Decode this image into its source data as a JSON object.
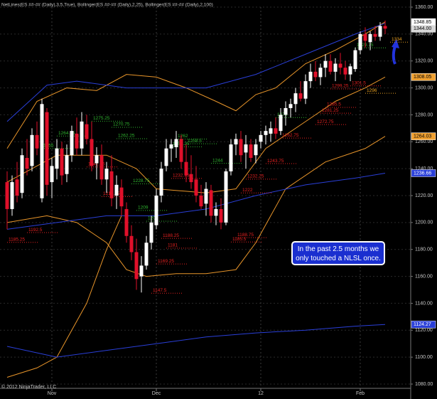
{
  "chart_data": {
    "type": "candlestick",
    "title": "NetLines(ES ##-## (Daily),3,5,True), Bollinger(ES ##-## (Daily),2,25), Bollinger(ES ##-## (Daily),2,100)",
    "copyright": "© 2012 NinjaTrader, LLC",
    "annotation": "In the past 2.5 months we only touched a NLSL once.",
    "categories": [
      null,
      null,
      null,
      null,
      null,
      null,
      null,
      null,
      null,
      "Nov",
      null,
      null,
      null,
      null,
      null,
      null,
      null,
      null,
      null,
      null,
      null,
      null,
      null,
      null,
      null,
      null,
      null,
      null,
      null,
      null,
      "Dec",
      null,
      null,
      null,
      null,
      null,
      null,
      null,
      null,
      null,
      null,
      null,
      null,
      null,
      null,
      null,
      null,
      null,
      null,
      null,
      null,
      "12",
      null,
      null,
      null,
      null,
      null,
      null,
      null,
      null,
      null,
      null,
      null,
      null,
      null,
      null,
      null,
      null,
      null,
      null,
      null,
      "Feb",
      null,
      null,
      null,
      null,
      null
    ],
    "open": [
      1230,
      1210,
      1232,
      1222,
      1248,
      1242,
      1265,
      1218,
      1282,
      1230,
      1240,
      1255,
      1236,
      1250,
      1266,
      1255,
      1273,
      1262,
      1244,
      1250,
      1232,
      1238,
      1220,
      1226,
      1210,
      1190,
      1178,
      1160,
      1168,
      1185,
      1198,
      1220,
      1242,
      1255,
      1256,
      1262,
      1245,
      1236,
      1232,
      1220,
      1214,
      1224,
      1205,
      1210,
      1200,
      1238,
      1258,
      1262,
      1252,
      1258,
      1250,
      1260,
      1265,
      1266,
      1270,
      1268,
      1280,
      1285,
      1288,
      1296,
      1292,
      1305,
      1312,
      1308,
      1315,
      1320,
      1312,
      1318,
      1315,
      1310,
      1314,
      1328,
      1340,
      1334,
      1340,
      1338,
      1346
    ],
    "high": [
      1238,
      1235,
      1245,
      1255,
      1262,
      1270,
      1275,
      1292,
      1285,
      1248,
      1262,
      1260,
      1258,
      1272,
      1278,
      1282,
      1280,
      1275,
      1256,
      1258,
      1245,
      1250,
      1235,
      1232,
      1215,
      1198,
      1188,
      1175,
      1190,
      1205,
      1225,
      1245,
      1262,
      1262,
      1268,
      1265,
      1258,
      1250,
      1242,
      1228,
      1230,
      1228,
      1215,
      1218,
      1240,
      1262,
      1266,
      1268,
      1265,
      1262,
      1262,
      1268,
      1272,
      1275,
      1278,
      1285,
      1290,
      1292,
      1300,
      1305,
      1310,
      1318,
      1320,
      1318,
      1325,
      1325,
      1322,
      1326,
      1320,
      1318,
      1330,
      1342,
      1345,
      1342,
      1346,
      1348.85,
      1350
    ],
    "low": [
      1195,
      1205,
      1215,
      1218,
      1235,
      1238,
      1250,
      1215,
      1220,
      1218,
      1232,
      1228,
      1230,
      1245,
      1250,
      1250,
      1258,
      1238,
      1232,
      1228,
      1222,
      1212,
      1210,
      1205,
      1185,
      1172,
      1150,
      1148,
      1165,
      1180,
      1195,
      1215,
      1238,
      1245,
      1248,
      1240,
      1230,
      1225,
      1215,
      1210,
      1205,
      1200,
      1198,
      1195,
      1198,
      1235,
      1250,
      1245,
      1240,
      1245,
      1244,
      1255,
      1258,
      1260,
      1262,
      1265,
      1272,
      1278,
      1282,
      1290,
      1288,
      1300,
      1305,
      1302,
      1308,
      1310,
      1305,
      1310,
      1306,
      1305,
      1312,
      1325,
      1330,
      1328,
      1335,
      1335,
      1340
    ],
    "close": [
      1210,
      1230,
      1220,
      1250,
      1240,
      1265,
      1255,
      1288,
      1228,
      1242,
      1255,
      1235,
      1250,
      1268,
      1255,
      1275,
      1262,
      1242,
      1250,
      1232,
      1240,
      1218,
      1228,
      1212,
      1190,
      1178,
      1158,
      1168,
      1185,
      1200,
      1220,
      1240,
      1255,
      1258,
      1262,
      1245,
      1235,
      1230,
      1220,
      1212,
      1225,
      1205,
      1210,
      1200,
      1238,
      1258,
      1262,
      1250,
      1258,
      1248,
      1258,
      1265,
      1268,
      1270,
      1266,
      1280,
      1285,
      1288,
      1296,
      1292,
      1305,
      1312,
      1308,
      1315,
      1320,
      1312,
      1318,
      1315,
      1310,
      1316,
      1328,
      1340,
      1335,
      1340,
      1338,
      1346,
      1344
    ],
    "up_color": "#ffffff",
    "down_color": "#e0102a",
    "ylim": [
      1080,
      1360
    ],
    "yticks": [
      {
        "value": 1080,
        "label": "1080.00"
      },
      {
        "value": 1100,
        "label": "1100.00"
      },
      {
        "value": 1120,
        "label": "1120.00"
      },
      {
        "value": 1140,
        "label": "1140.00"
      },
      {
        "value": 1160,
        "label": "1160.00"
      },
      {
        "value": 1180,
        "label": "1180.00"
      },
      {
        "value": 1200,
        "label": "1200.00"
      },
      {
        "value": 1220,
        "label": "1220.00"
      },
      {
        "value": 1240,
        "label": "1240.00"
      },
      {
        "value": 1260,
        "label": "1260.00"
      },
      {
        "value": 1280,
        "label": "1280.00"
      },
      {
        "value": 1300,
        "label": "1300.00"
      },
      {
        "value": 1320,
        "label": "1320.00"
      },
      {
        "value": 1340,
        "label": "1340.00"
      },
      {
        "value": 1360,
        "label": "1360.00"
      }
    ],
    "grid": true,
    "lines": [
      {
        "color": "#e8952a",
        "x": [
          0,
          6,
          12,
          18,
          24,
          30,
          36,
          42,
          46,
          50,
          54,
          60,
          66,
          72,
          76
        ],
        "values": [
          1255,
          1290,
          1300,
          1298,
          1310,
          1308,
          1300,
          1290,
          1283,
          1295,
          1300,
          1318,
          1328,
          1340,
          1349
        ]
      },
      {
        "color": "#e8952a",
        "x": [
          0,
          10,
          20,
          26,
          30,
          40,
          46,
          52,
          60,
          66,
          72,
          76
        ],
        "values": [
          1230,
          1250,
          1250,
          1240,
          1225,
          1222,
          1225,
          1255,
          1275,
          1290,
          1300,
          1308.05
        ]
      },
      {
        "color": "#e8952a",
        "x": [
          0,
          8,
          14,
          20,
          24,
          28,
          34,
          40,
          46,
          50,
          56,
          64,
          72,
          76
        ],
        "values": [
          1200,
          1205,
          1200,
          1185,
          1165,
          1160,
          1162,
          1162,
          1165,
          1185,
          1225,
          1245,
          1255,
          1264.03
        ]
      },
      {
        "color": "#e8952a",
        "x": [
          0,
          6,
          10,
          16,
          20,
          23
        ],
        "values": [
          1085,
          1092,
          1100,
          1140,
          1180,
          1205
        ]
      },
      {
        "color": "#2a3fd8",
        "x": [
          0,
          8,
          14,
          24,
          30,
          40,
          50,
          60,
          70,
          76
        ],
        "values": [
          1275,
          1302,
          1305,
          1300,
          1300,
          1300,
          1310,
          1325,
          1340,
          1348
        ]
      },
      {
        "color": "#2a3fd8",
        "x": [
          0,
          10,
          20,
          30,
          40,
          50,
          60,
          70,
          76
        ],
        "values": [
          1195,
          1200,
          1205,
          1205,
          1210,
          1220,
          1228,
          1233,
          1236.66
        ]
      },
      {
        "color": "#2a3fd8",
        "x": [
          0,
          10,
          20,
          30,
          40,
          50,
          60,
          70,
          76
        ],
        "values": [
          1108,
          1100,
          1105,
          1110,
          1115,
          1118,
          1120,
          1123,
          1124.27
        ]
      }
    ],
    "levels": [
      {
        "value": 1264.25,
        "start": 10,
        "color": "#2fb52f"
      },
      {
        "value": 1275.25,
        "start": 17,
        "color": "#2fb52f"
      },
      {
        "value": 1270.75,
        "start": 21,
        "color": "#2fb52f"
      },
      {
        "value": 1262.25,
        "start": 22,
        "color": "#2fb52f"
      },
      {
        "value": 1255,
        "start": 7,
        "color": "#2fb52f"
      },
      {
        "value": 1228.75,
        "start": 25,
        "color": "#2fb52f"
      },
      {
        "value": 1209,
        "start": 26,
        "color": "#2fb52f"
      },
      {
        "value": 1201,
        "start": 28,
        "color": "#2fb52f"
      },
      {
        "value": 1262,
        "start": 34,
        "color": "#2fb52f"
      },
      {
        "value": 1258.5,
        "start": 36,
        "color": "#2fb52f"
      },
      {
        "value": 1256.25,
        "start": 33,
        "color": "#2fb52f"
      },
      {
        "value": 1244,
        "start": 41,
        "color": "#2fb52f"
      },
      {
        "value": 1278,
        "start": 54,
        "color": "#2fb52f"
      },
      {
        "value": 1329.75,
        "start": 70,
        "color": "#2fb52f"
      },
      {
        "value": 1192.5,
        "start": 4,
        "color": "#e52020"
      },
      {
        "value": 1185.25,
        "start": 0,
        "color": "#e52020"
      },
      {
        "value": 1241.25,
        "start": 16,
        "color": "#e52020"
      },
      {
        "value": 1219.25,
        "start": 19,
        "color": "#e52020"
      },
      {
        "value": 1232.75,
        "start": 33,
        "color": "#e52020"
      },
      {
        "value": 1188.25,
        "start": 31,
        "color": "#e52020"
      },
      {
        "value": 1181,
        "start": 32,
        "color": "#e52020"
      },
      {
        "value": 1169.25,
        "start": 30,
        "color": "#e52020"
      },
      {
        "value": 1147.5,
        "start": 29,
        "color": "#e52020"
      },
      {
        "value": 1243.75,
        "start": 52,
        "color": "#e52020"
      },
      {
        "value": 1232.25,
        "start": 48,
        "color": "#e52020"
      },
      {
        "value": 1222,
        "start": 47,
        "color": "#e52020"
      },
      {
        "value": 1188.75,
        "start": 46,
        "color": "#e52020"
      },
      {
        "value": 1185.5,
        "start": 45,
        "color": "#e52020"
      },
      {
        "value": 1262.75,
        "start": 55,
        "color": "#e52020"
      },
      {
        "value": 1272.75,
        "start": 62,
        "color": "#e52020"
      },
      {
        "value": 1281.25,
        "start": 63,
        "color": "#e52020"
      },
      {
        "value": 1285.5,
        "start": 64,
        "color": "#e52020"
      },
      {
        "value": 1299.25,
        "start": 65,
        "color": "#e52020"
      },
      {
        "value": 1301.5,
        "start": 69,
        "color": "#e52020"
      },
      {
        "value": 1296,
        "start": 72,
        "color": "#e8a020"
      },
      {
        "value": 1334,
        "start": 77,
        "color": "#e8a020"
      }
    ],
    "price_markers": [
      {
        "value": 1348.85,
        "color": "#ffffff"
      },
      {
        "value": 1344,
        "label": "1344.00",
        "color": "#d8d8d8"
      },
      {
        "value": 1308.05,
        "color": "#f0a030"
      },
      {
        "value": 1264.03,
        "color": "#f0a030"
      },
      {
        "value": 1236.66,
        "color": "#2a3fd8"
      },
      {
        "value": 1124.27,
        "color": "#2a3fd8"
      }
    ]
  }
}
